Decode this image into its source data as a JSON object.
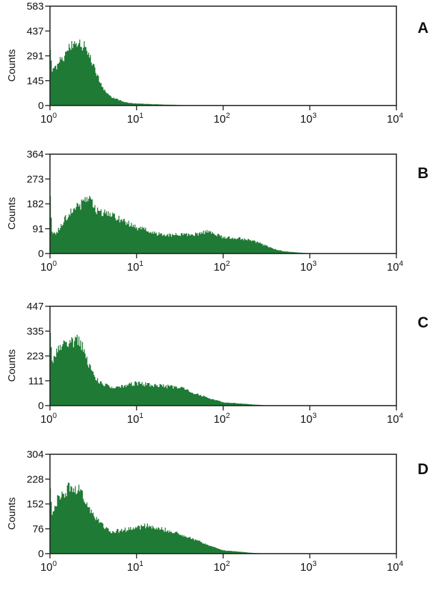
{
  "figure": {
    "colors": {
      "fill": "#1f7a35",
      "axis": "#222222"
    },
    "x_ticks": [
      "10^0",
      "10^1",
      "10^2",
      "10^3",
      "10^4"
    ],
    "x_tick_labels": [
      {
        "base": "10",
        "exp": "0"
      },
      {
        "base": "10",
        "exp": "1"
      },
      {
        "base": "10",
        "exp": "2"
      },
      {
        "base": "10",
        "exp": "3"
      },
      {
        "base": "10",
        "exp": "4"
      }
    ],
    "ylabel": "Counts"
  },
  "panels": [
    {
      "letter": "A",
      "yticks": [
        "0",
        "145",
        "291",
        "437",
        "583"
      ]
    },
    {
      "letter": "B",
      "yticks": [
        "0",
        "91",
        "182",
        "273",
        "364"
      ]
    },
    {
      "letter": "C",
      "yticks": [
        "0",
        "111",
        "223",
        "335",
        "447"
      ]
    },
    {
      "letter": "D",
      "yticks": [
        "0",
        "76",
        "152",
        "228",
        "304"
      ]
    }
  ],
  "chart_data": [
    {
      "type": "area",
      "title": "A",
      "xlabel": "",
      "ylabel": "Counts",
      "xscale": "log",
      "xlim": [
        1,
        10000
      ],
      "ylim": [
        0,
        583
      ],
      "yticks": [
        0,
        145,
        291,
        437,
        583
      ],
      "x": [
        1.0,
        1.05,
        1.2,
        1.4,
        1.6,
        1.8,
        2.0,
        2.2,
        2.5,
        2.8,
        3.2,
        3.6,
        4.0,
        4.5,
        5.0,
        6.0,
        7.0,
        8.0,
        10,
        13,
        17,
        22,
        28,
        35
      ],
      "values": [
        360,
        210,
        240,
        280,
        320,
        360,
        380,
        370,
        340,
        290,
        220,
        160,
        110,
        75,
        50,
        35,
        22,
        15,
        12,
        9,
        7,
        5,
        4,
        2
      ]
    },
    {
      "type": "area",
      "title": "B",
      "xlabel": "",
      "ylabel": "Counts",
      "xscale": "log",
      "xlim": [
        1,
        10000
      ],
      "ylim": [
        0,
        364
      ],
      "yticks": [
        0,
        91,
        182,
        273,
        364
      ],
      "x": [
        1.0,
        1.05,
        1.2,
        1.5,
        1.8,
        2.2,
        2.6,
        3.0,
        3.5,
        4.5,
        6,
        8,
        10,
        13,
        17,
        25,
        35,
        50,
        65,
        80,
        100,
        150,
        200,
        300,
        400,
        500,
        700,
        900,
        1000
      ],
      "values": [
        205,
        70,
        80,
        130,
        160,
        175,
        210,
        185,
        155,
        145,
        130,
        110,
        95,
        85,
        72,
        68,
        70,
        72,
        80,
        70,
        60,
        55,
        50,
        30,
        15,
        8,
        4,
        2,
        0
      ]
    },
    {
      "type": "area",
      "title": "C",
      "xlabel": "",
      "ylabel": "Counts",
      "xscale": "log",
      "xlim": [
        1,
        10000
      ],
      "ylim": [
        0,
        447
      ],
      "yticks": [
        0,
        111,
        223,
        335,
        447
      ],
      "x": [
        1.0,
        1.05,
        1.15,
        1.3,
        1.5,
        1.8,
        2.1,
        2.4,
        2.7,
        3.0,
        3.5,
        4.0,
        5.0,
        6.0,
        8,
        10,
        13,
        18,
        25,
        35,
        45,
        60,
        80,
        100,
        150,
        200,
        300
      ],
      "values": [
        320,
        180,
        230,
        260,
        280,
        290,
        295,
        260,
        200,
        150,
        115,
        95,
        85,
        80,
        95,
        100,
        95,
        90,
        85,
        80,
        55,
        40,
        25,
        15,
        10,
        6,
        2
      ]
    },
    {
      "type": "area",
      "title": "D",
      "xlabel": "",
      "ylabel": "Counts",
      "xscale": "log",
      "xlim": [
        1,
        10000
      ],
      "ylim": [
        0,
        304
      ],
      "yticks": [
        0,
        76,
        152,
        228,
        304
      ],
      "x": [
        1.0,
        1.05,
        1.2,
        1.4,
        1.6,
        2.0,
        2.3,
        2.7,
        3.2,
        4.0,
        5.0,
        6.0,
        8,
        10,
        13,
        18,
        25,
        35,
        45,
        60,
        80,
        100,
        150,
        200,
        260
      ],
      "values": [
        205,
        120,
        165,
        180,
        200,
        200,
        185,
        150,
        110,
        85,
        65,
        70,
        75,
        80,
        85,
        75,
        70,
        55,
        45,
        30,
        18,
        10,
        6,
        3,
        1
      ]
    }
  ]
}
